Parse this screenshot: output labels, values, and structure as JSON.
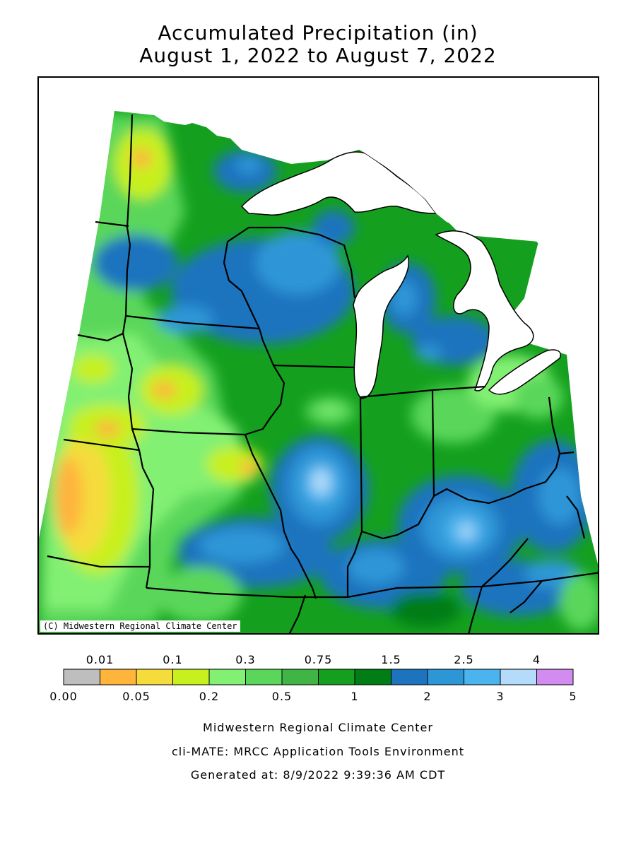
{
  "title": {
    "line1": "Accumulated Precipitation (in)",
    "line2": "August 1, 2022 to August 7, 2022"
  },
  "map": {
    "copyright": "(C) Midwestern Regional Climate Center",
    "water_color": "#ffffff",
    "boundary_color": "#000000"
  },
  "legend": {
    "top_ticks": [
      "0.01",
      "0.1",
      "0.3",
      "0.75",
      "1.5",
      "2.5",
      "4"
    ],
    "bottom_ticks": [
      "0.00",
      "0.05",
      "0.2",
      "0.5",
      "1",
      "2",
      "3",
      "5"
    ],
    "colors": [
      "#bebebe",
      "#ffb43c",
      "#f5dc3c",
      "#c8f01e",
      "#82f073",
      "#5ad75a",
      "#41b446",
      "#14a01e",
      "#007d14",
      "#1e73be",
      "#2d96d7",
      "#4bb4ee",
      "#b4dcfa",
      "#d28cf0"
    ]
  },
  "footer": {
    "line1": "Midwestern Regional Climate Center",
    "line2": "cli-MATE: MRCC Application Tools Environment",
    "line3": "Generated at: 8/9/2022 9:39:36 AM CDT"
  }
}
